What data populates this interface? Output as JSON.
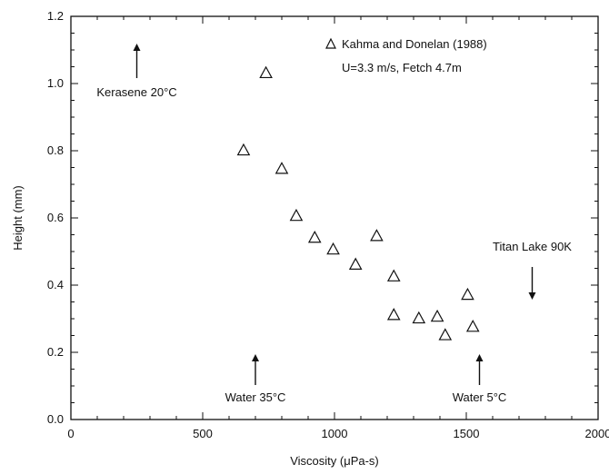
{
  "chart_data": {
    "type": "scatter",
    "xlabel": "Viscosity (μPa-s)",
    "ylabel": "Height (mm)",
    "xlim": [
      0,
      2000
    ],
    "ylim": [
      0.0,
      1.2
    ],
    "xticks": [
      0,
      500,
      1000,
      1500,
      2000
    ],
    "yticks": [
      0.0,
      0.2,
      0.4,
      0.6,
      0.8,
      1.0,
      1.2
    ],
    "xtick_labels": [
      "0",
      "500",
      "1000",
      "1500",
      "2000"
    ],
    "ytick_labels": [
      "0.0",
      "0.2",
      "0.4",
      "0.6",
      "0.8",
      "1.0",
      "1.2"
    ],
    "grid": false,
    "marker": "triangle-open",
    "legend": {
      "placement": "top-right",
      "entry": "Kahma and Donelan (1988)",
      "subtitle": "U=3.3 m/s, Fetch 4.7m"
    },
    "series": [
      {
        "name": "Kahma and Donelan (1988)",
        "x": [
          655,
          740,
          800,
          855,
          925,
          995,
          1080,
          1160,
          1225,
          1225,
          1320,
          1390,
          1420,
          1505,
          1525
        ],
        "y": [
          0.8,
          1.03,
          0.745,
          0.605,
          0.54,
          0.505,
          0.46,
          0.545,
          0.425,
          0.31,
          0.3,
          0.305,
          0.25,
          0.37,
          0.275
        ]
      }
    ],
    "annotations": [
      {
        "text": "Kerasene 20°C",
        "x": 250,
        "direction": "up"
      },
      {
        "text": "Water 35°C",
        "x": 700,
        "direction": "up"
      },
      {
        "text": "Water 5°C",
        "x": 1550,
        "direction": "up"
      },
      {
        "text": "Titan Lake 90K",
        "x": 1750,
        "direction": "down"
      }
    ]
  }
}
